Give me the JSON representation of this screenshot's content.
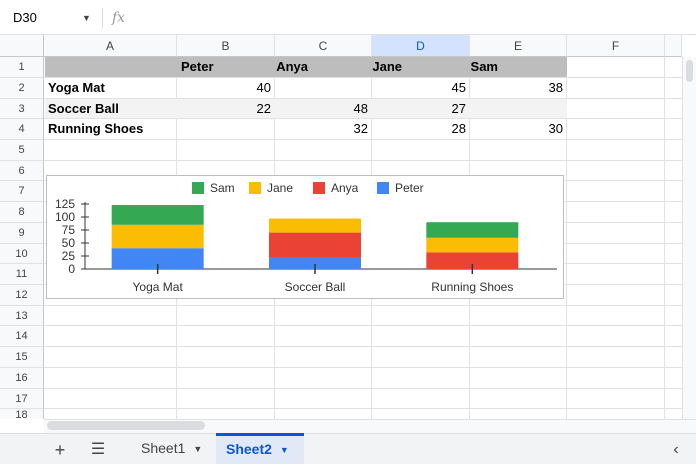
{
  "formula_bar": {
    "name_box": "D30",
    "fx": "fx"
  },
  "columns": [
    "A",
    "B",
    "C",
    "D",
    "E",
    "F"
  ],
  "selected_column": "D",
  "rows": [
    "1",
    "2",
    "3",
    "4",
    "5",
    "6",
    "7",
    "8",
    "9",
    "10",
    "11",
    "12",
    "13",
    "14",
    "15",
    "16",
    "17",
    "18"
  ],
  "table": {
    "header": [
      "",
      "Peter",
      "Anya",
      "Jane",
      "Sam"
    ],
    "body": [
      [
        "Yoga Mat",
        "40",
        "",
        "45",
        "38"
      ],
      [
        "Soccer Ball",
        "22",
        "48",
        "27",
        ""
      ],
      [
        "Running Shoes",
        "",
        "32",
        "28",
        "30"
      ]
    ]
  },
  "chart_data": {
    "type": "bar",
    "stacked": true,
    "categories": [
      "Yoga Mat",
      "Soccer Ball",
      "Running Shoes"
    ],
    "series": [
      {
        "name": "Peter",
        "color": "#4285f4",
        "values": [
          40,
          22,
          0
        ]
      },
      {
        "name": "Anya",
        "color": "#ea4335",
        "values": [
          0,
          48,
          32
        ]
      },
      {
        "name": "Jane",
        "color": "#fbbc04",
        "values": [
          45,
          27,
          28
        ]
      },
      {
        "name": "Sam",
        "color": "#34a853",
        "values": [
          38,
          0,
          30
        ]
      }
    ],
    "legend_order": [
      "Sam",
      "Jane",
      "Anya",
      "Peter"
    ],
    "legend_position": "top",
    "yticks": [
      "0",
      "25",
      "50",
      "75",
      "100",
      "125"
    ],
    "ylim": [
      0,
      125
    ],
    "title": "",
    "xlabel": "",
    "ylabel": ""
  },
  "sheets": [
    {
      "name": "Sheet1",
      "active": false
    },
    {
      "name": "Sheet2",
      "active": true
    }
  ],
  "icons": {
    "add_sheet": "plus-icon",
    "all_sheets": "menu-icon",
    "collapse": "chevron-left-icon"
  }
}
